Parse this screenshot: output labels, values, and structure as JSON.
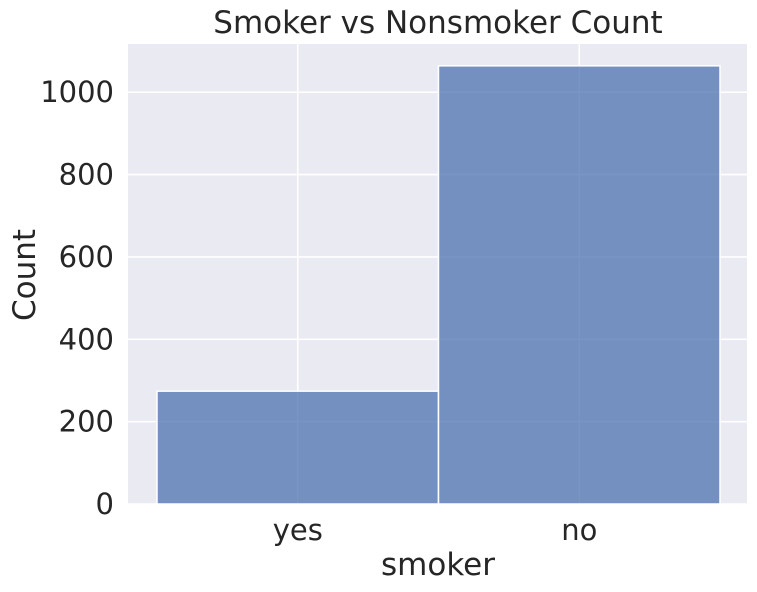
{
  "chart_data": {
    "type": "bar",
    "title": "Smoker vs Nonsmoker Count",
    "xlabel": "smoker",
    "ylabel": "Count",
    "categories": [
      "yes",
      "no"
    ],
    "values": [
      274,
      1064
    ],
    "ylim": [
      0,
      1117
    ],
    "yticks": [
      "0",
      "200",
      "400",
      "600",
      "800",
      "1000"
    ],
    "grid": true,
    "legend": "none",
    "bar_color": "#4c72b0",
    "background_color": "#eaeaf2",
    "grid_color": "#ffffff"
  }
}
